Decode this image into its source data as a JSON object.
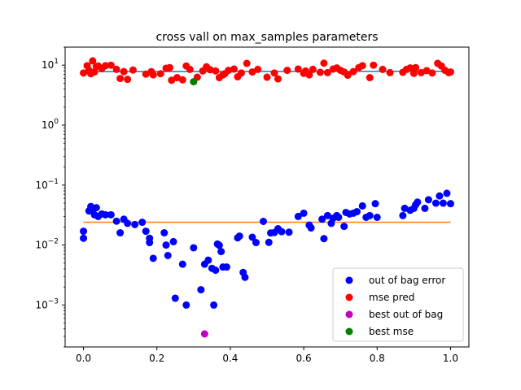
{
  "chart_data": {
    "type": "scatter",
    "title": "cross vall on max_samples parameters",
    "xlabel": "",
    "ylabel": "",
    "y_scale": "log",
    "xlim": [
      -0.05,
      1.05
    ],
    "ylim": [
      0.0002,
      20
    ],
    "x_ticks": [
      "0.0",
      "0.2",
      "0.4",
      "0.6",
      "0.8",
      "1.0"
    ],
    "y_ticks": [
      {
        "value": 0.001,
        "label": "10^{-3}"
      },
      {
        "value": 0.01,
        "label": "10^{-2}"
      },
      {
        "value": 0.1,
        "label": "10^{-1}"
      },
      {
        "value": 1,
        "label": "10^{0}"
      },
      {
        "value": 10,
        "label": "10^{1}"
      }
    ],
    "legend_position": "lower-right",
    "colors": {
      "oob": "#0000ff",
      "mse": "#ff0000",
      "best_oob": "#bf00bf",
      "best_mse": "#008000",
      "mse_line": "#1f77b4",
      "oob_line": "#ff7f0e"
    },
    "series": [
      {
        "name": "out of bag error",
        "color": "#0000ff",
        "x": [
          0.0,
          0.0,
          0.015,
          0.02,
          0.025,
          0.03,
          0.035,
          0.04,
          0.05,
          0.06,
          0.075,
          0.09,
          0.1,
          0.11,
          0.12,
          0.14,
          0.16,
          0.17,
          0.18,
          0.18,
          0.19,
          0.22,
          0.225,
          0.23,
          0.245,
          0.25,
          0.27,
          0.28,
          0.3,
          0.32,
          0.33,
          0.34,
          0.35,
          0.355,
          0.36,
          0.365,
          0.37,
          0.375,
          0.38,
          0.39,
          0.42,
          0.425,
          0.435,
          0.44,
          0.46,
          0.47,
          0.49,
          0.505,
          0.51,
          0.52,
          0.53,
          0.54,
          0.56,
          0.585,
          0.6,
          0.615,
          0.62,
          0.65,
          0.655,
          0.665,
          0.675,
          0.68,
          0.69,
          0.695,
          0.71,
          0.715,
          0.725,
          0.735,
          0.745,
          0.76,
          0.77,
          0.78,
          0.795,
          0.8,
          0.87,
          0.875,
          0.89,
          0.9,
          0.905,
          0.91,
          0.93,
          0.94,
          0.96,
          0.97,
          0.98,
          0.99,
          1.0
        ],
        "y": [
          0.017,
          0.013,
          0.037,
          0.044,
          0.039,
          0.032,
          0.042,
          0.03,
          0.033,
          0.032,
          0.032,
          0.025,
          0.016,
          0.027,
          0.023,
          0.022,
          0.024,
          0.017,
          0.011,
          0.013,
          0.006,
          0.016,
          0.01,
          0.0067,
          0.0114,
          0.0013,
          0.0048,
          0.001,
          0.009,
          0.0018,
          0.0048,
          0.0056,
          0.0041,
          0.001,
          0.0038,
          0.0104,
          0.0099,
          0.0078,
          0.0043,
          0.0043,
          0.0132,
          0.0141,
          0.0035,
          0.0029,
          0.0135,
          0.011,
          0.0248,
          0.0111,
          0.0159,
          0.0162,
          0.0187,
          0.0167,
          0.0164,
          0.03,
          0.034,
          0.0215,
          0.0193,
          0.027,
          0.0128,
          0.031,
          0.023,
          0.028,
          0.031,
          0.029,
          0.0205,
          0.035,
          0.033,
          0.034,
          0.036,
          0.045,
          0.029,
          0.031,
          0.049,
          0.029,
          0.031,
          0.041,
          0.038,
          0.041,
          0.047,
          0.052,
          0.041,
          0.057,
          0.05,
          0.066,
          0.05,
          0.073,
          0.049
        ]
      },
      {
        "name": "mse pred",
        "color": "#ff0000",
        "x": [
          0.0,
          0.01,
          0.015,
          0.02,
          0.025,
          0.03,
          0.035,
          0.04,
          0.05,
          0.06,
          0.075,
          0.09,
          0.1,
          0.11,
          0.12,
          0.135,
          0.17,
          0.185,
          0.19,
          0.21,
          0.225,
          0.235,
          0.24,
          0.255,
          0.27,
          0.28,
          0.29,
          0.31,
          0.325,
          0.335,
          0.345,
          0.36,
          0.37,
          0.38,
          0.385,
          0.395,
          0.41,
          0.42,
          0.43,
          0.445,
          0.46,
          0.475,
          0.5,
          0.52,
          0.53,
          0.555,
          0.585,
          0.6,
          0.605,
          0.615,
          0.625,
          0.645,
          0.655,
          0.665,
          0.68,
          0.69,
          0.7,
          0.71,
          0.72,
          0.735,
          0.75,
          0.76,
          0.78,
          0.79,
          0.815,
          0.835,
          0.87,
          0.88,
          0.89,
          0.9,
          0.905,
          0.92,
          0.935,
          0.95,
          0.965,
          0.975,
          0.985,
          0.995,
          1.0
        ],
        "y": [
          7.4,
          9.8,
          8.2,
          7.2,
          11.8,
          7.7,
          9.5,
          9.7,
          8.8,
          9.8,
          10.0,
          8.5,
          6.0,
          7.8,
          5.8,
          8.3,
          7.1,
          7.8,
          6.9,
          7.2,
          8.9,
          9.1,
          5.6,
          6.2,
          5.7,
          9.7,
          8.5,
          6.3,
          8.0,
          9.4,
          8.4,
          8.0,
          6.2,
          6.9,
          7.2,
          8.2,
          8.6,
          6.4,
          7.4,
          10.7,
          7.7,
          8.5,
          6.3,
          7.4,
          5.9,
          8.2,
          8.6,
          7.3,
          8.0,
          6.9,
          8.5,
          7.6,
          10.8,
          7.5,
          8.6,
          9.0,
          8.2,
          7.7,
          6.8,
          7.8,
          9.1,
          9.8,
          6.2,
          10.0,
          8.5,
          7.5,
          7.6,
          8.5,
          9.0,
          7.3,
          9.1,
          7.5,
          8.1,
          7.4,
          10.7,
          9.7,
          8.2,
          7.5,
          7.7
        ]
      },
      {
        "name": "best out of bag",
        "color": "#bf00bf",
        "x": [
          0.33
        ],
        "y": [
          0.00033
        ]
      },
      {
        "name": "best mse",
        "color": "#008000",
        "x": [
          0.3
        ],
        "y": [
          5.3
        ]
      }
    ],
    "lines": [
      {
        "color": "#1f77b4",
        "x": [
          0.0,
          1.0
        ],
        "y": [
          7.8,
          7.9
        ]
      },
      {
        "color": "#ff7f0e",
        "x": [
          0.0,
          1.0
        ],
        "y": [
          0.024,
          0.024
        ]
      }
    ]
  }
}
